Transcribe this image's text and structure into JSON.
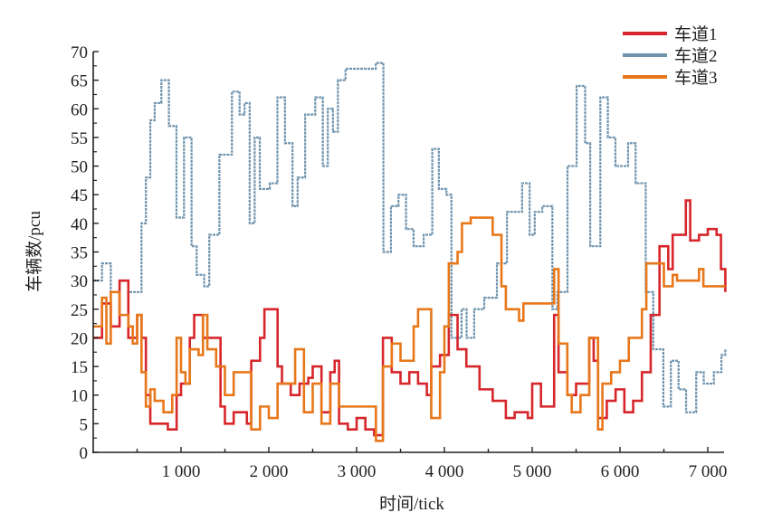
{
  "chart_data": {
    "type": "line",
    "title": "",
    "xlabel": "时间/tick",
    "ylabel": "车辆数/pcu",
    "xlim": [
      0,
      7200
    ],
    "ylim": [
      0,
      70
    ],
    "xticks": [
      1000,
      2000,
      3000,
      4000,
      5000,
      6000,
      7000
    ],
    "xtick_labels": [
      "1 000",
      "2 000",
      "3 000",
      "4 000",
      "5 000",
      "6 000",
      "7 000"
    ],
    "yticks": [
      0,
      5,
      10,
      15,
      20,
      25,
      30,
      35,
      40,
      45,
      50,
      55,
      60,
      65,
      70
    ],
    "ytick_labels": [
      "0",
      "5",
      "10",
      "15",
      "20",
      "25",
      "30",
      "35",
      "40",
      "45",
      "50",
      "55",
      "60",
      "65",
      "70"
    ],
    "grid": false,
    "legend_position": "top-right",
    "series": [
      {
        "name": "车道1",
        "color": "#d7262b",
        "step": true,
        "x": [
          0,
          100,
          200,
          300,
          400,
          500,
          550,
          600,
          650,
          750,
          850,
          950,
          1000,
          1100,
          1150,
          1250,
          1350,
          1450,
          1500,
          1600,
          1750,
          1800,
          1900,
          1950,
          2050,
          2100,
          2150,
          2250,
          2350,
          2450,
          2500,
          2600,
          2700,
          2750,
          2800,
          2900,
          3000,
          3100,
          3200,
          3250,
          3300,
          3400,
          3500,
          3600,
          3700,
          3800,
          3850,
          3950,
          4050,
          4150,
          4250,
          4400,
          4550,
          4700,
          4800,
          4950,
          5000,
          5100,
          5200,
          5250,
          5300,
          5400,
          5500,
          5600,
          5650,
          5700,
          5750,
          5850,
          5950,
          6050,
          6150,
          6250,
          6350,
          6450,
          6550,
          6600,
          6700,
          6750,
          6800,
          6900,
          7000,
          7100,
          7150,
          7200
        ],
        "y": [
          20,
          26,
          22,
          30,
          20,
          24,
          20,
          10,
          5,
          5,
          4,
          10,
          12,
          20,
          24,
          20,
          20,
          8,
          5,
          7,
          5,
          16,
          20,
          25,
          25,
          15,
          12,
          10,
          12,
          13,
          15,
          7,
          14,
          16,
          5,
          4,
          6,
          4,
          3,
          3,
          20,
          14,
          12,
          14,
          12,
          10,
          15,
          17,
          24,
          18,
          15,
          11,
          9,
          6,
          7,
          6,
          12,
          8,
          8,
          24,
          14,
          10,
          12,
          12,
          20,
          16,
          6,
          9,
          11,
          7,
          9,
          14,
          24,
          36,
          32,
          38,
          38,
          44,
          37,
          38,
          39,
          38,
          32,
          28
        ]
      },
      {
        "name": "车道2",
        "color": "#6f93ad",
        "step": true,
        "x": [
          0,
          100,
          200,
          300,
          400,
          500,
          550,
          600,
          650,
          700,
          776,
          862,
          948,
          1034,
          1120,
          1178,
          1264,
          1322,
          1437,
          1580,
          1667,
          1724,
          1782,
          1839,
          1897,
          2011,
          2098,
          2184,
          2270,
          2328,
          2414,
          2529,
          2615,
          2672,
          2730,
          2787,
          2874,
          3046,
          3218,
          3305,
          3391,
          3477,
          3563,
          3649,
          3764,
          3862,
          3937,
          4023,
          4080,
          4195,
          4253,
          4339,
          4454,
          4598,
          4713,
          4885,
          4971,
          5029,
          5115,
          5230,
          5287,
          5402,
          5506,
          5603,
          5661,
          5776,
          5862,
          5948,
          6092,
          6178,
          6293,
          6379,
          6494,
          6580,
          6667,
          6753,
          6868,
          6954,
          7069,
          7155,
          7200
        ],
        "y": [
          30,
          33,
          28,
          30,
          28,
          28,
          40,
          48,
          58,
          61,
          65,
          57,
          41,
          55,
          36,
          31,
          29,
          38,
          52,
          63,
          59,
          61,
          40,
          55,
          46,
          47,
          62,
          54,
          43,
          48,
          59,
          62,
          50,
          60,
          56,
          65,
          67,
          67,
          68,
          35,
          43,
          45,
          39,
          36,
          38,
          53,
          46,
          45,
          20,
          25,
          20,
          25,
          27,
          33,
          42,
          47,
          38,
          42,
          43,
          25,
          28,
          50,
          64,
          54,
          36,
          62,
          55,
          50,
          54,
          47,
          28,
          18,
          8,
          16,
          11,
          7,
          14,
          12,
          14,
          17,
          18
        ]
      },
      {
        "name": "车道3",
        "color": "#e8771a",
        "step": true,
        "x": [
          0,
          100,
          150,
          200,
          300,
          400,
          450,
          500,
          550,
          600,
          650,
          700,
          800,
          900,
          950,
          1000,
          1050,
          1100,
          1200,
          1250,
          1300,
          1400,
          1500,
          1600,
          1750,
          1800,
          1900,
          2000,
          2100,
          2300,
          2400,
          2500,
          2600,
          2700,
          2800,
          3200,
          3220,
          3300,
          3400,
          3500,
          3600,
          3650,
          3700,
          3800,
          3850,
          3950,
          4000,
          4050,
          4150,
          4200,
          4300,
          4500,
          4550,
          4650,
          4700,
          4850,
          4900,
          5200,
          5250,
          5300,
          5400,
          5450,
          5550,
          5650,
          5750,
          5800,
          5900,
          6000,
          6100,
          6200,
          6250,
          6300,
          6400,
          6500,
          6600,
          6650,
          6900,
          6950,
          7200
        ],
        "y": [
          22,
          27,
          19,
          28,
          24,
          22,
          19,
          24,
          14,
          8,
          11,
          9,
          7,
          10,
          20,
          14,
          12,
          18,
          17,
          24,
          18,
          15,
          10,
          14,
          14,
          4,
          8,
          6,
          12,
          18,
          7,
          12,
          5,
          12,
          8,
          8,
          2,
          15,
          19,
          16,
          16,
          22,
          25,
          25,
          6,
          14,
          22,
          33,
          35,
          40,
          41,
          41,
          38,
          29,
          25,
          23,
          26,
          26,
          32,
          19,
          10,
          7,
          10,
          20,
          4,
          12,
          14,
          16,
          20,
          20,
          25,
          33,
          33,
          29,
          31,
          30,
          32,
          29,
          29
        ]
      }
    ]
  }
}
